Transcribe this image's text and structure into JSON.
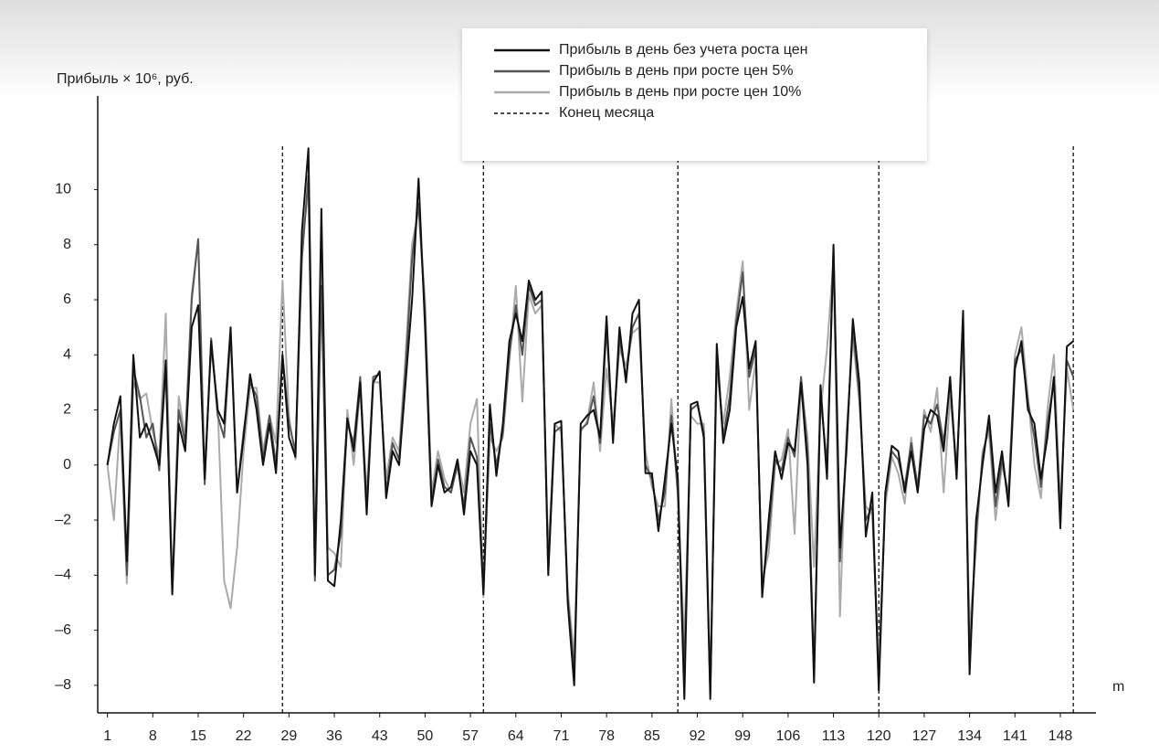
{
  "chart_data": {
    "type": "line",
    "y_label": "Прибыль × 10⁶, руб.",
    "x_label": "m",
    "x": [
      1,
      2,
      3,
      4,
      5,
      6,
      7,
      8,
      9,
      10,
      11,
      12,
      13,
      14,
      15,
      16,
      17,
      18,
      19,
      20,
      21,
      22,
      23,
      24,
      25,
      26,
      27,
      28,
      29,
      30,
      31,
      32,
      33,
      34,
      35,
      36,
      37,
      38,
      39,
      40,
      41,
      42,
      43,
      44,
      45,
      46,
      47,
      48,
      49,
      50,
      51,
      52,
      53,
      54,
      55,
      56,
      57,
      58,
      59,
      60,
      61,
      62,
      63,
      64,
      65,
      66,
      67,
      68,
      69,
      70,
      71,
      72,
      73,
      74,
      75,
      76,
      77,
      78,
      79,
      80,
      81,
      82,
      83,
      84,
      85,
      86,
      87,
      88,
      89,
      90,
      91,
      92,
      93,
      94,
      95,
      96,
      97,
      98,
      99,
      100,
      101,
      102,
      103,
      104,
      105,
      106,
      107,
      108,
      109,
      110,
      111,
      112,
      113,
      114,
      115,
      116,
      117,
      118,
      119,
      120,
      121,
      122,
      123,
      124,
      125,
      126,
      127,
      128,
      129,
      130,
      131,
      132,
      133,
      134,
      135,
      136,
      137,
      138,
      139,
      140,
      141,
      142,
      143,
      144,
      145,
      146,
      147,
      148,
      149,
      150
    ],
    "series": [
      {
        "name": "Прибыль в день без учета роста цен",
        "color": "#111111",
        "values": [
          0,
          1.5,
          2.5,
          -3.5,
          4,
          1,
          1.5,
          0.8,
          0,
          3.8,
          -4.7,
          1.5,
          0.5,
          5,
          5.8,
          -0.5,
          4.5,
          2,
          1.5,
          5,
          -1,
          1,
          3.3,
          2,
          0,
          1.5,
          -0.3,
          4,
          1,
          0.3,
          8.5,
          11.5,
          -4,
          9.3,
          -4.2,
          -4.4,
          -2,
          1.7,
          0.5,
          3,
          -1.8,
          3,
          3.4,
          -1.2,
          0.5,
          0,
          3,
          6,
          10.4,
          5,
          -1.5,
          0,
          -1,
          -0.8,
          0.2,
          -1.8,
          0.5,
          0,
          -4.7,
          2.2,
          -0.4,
          1.5,
          4.5,
          5.5,
          4.5,
          6.7,
          6,
          6.3,
          -4,
          1.5,
          1.6,
          -5,
          -8,
          1.5,
          1.8,
          2,
          1,
          5.4,
          0.8,
          5,
          3,
          5.5,
          6,
          -0.3,
          -0.3,
          -2.4,
          -0.5,
          1.5,
          -0.5,
          -8.5,
          2.2,
          2.3,
          1,
          -8.5,
          4.4,
          0.8,
          2,
          5,
          6.1,
          3.5,
          4.5,
          -4.8,
          -2,
          0.5,
          -0.5,
          0.8,
          0.5,
          3,
          0,
          -7.9,
          2.9,
          -0.5,
          8,
          -3,
          0.5,
          5.3,
          3,
          -2.6,
          -1,
          -8.2,
          -1,
          0.7,
          0.5,
          -1,
          0.5,
          -1,
          1.3,
          2,
          1.8,
          0.5,
          3.2,
          -0.5,
          5.6,
          -7.6,
          -2,
          0,
          1.8,
          -1,
          0.5,
          -1.5,
          3.5,
          4.5,
          2,
          1.5,
          -0.5,
          1,
          3.2,
          -2.3,
          4.3,
          4.5
        ]
      },
      {
        "name": "Прибыль в день при росте цен 5%",
        "color": "#555555",
        "values": [
          0,
          1.2,
          2,
          -4,
          3.5,
          2.5,
          1,
          1.5,
          -0.2,
          3.5,
          -4.6,
          2,
          0.8,
          6,
          8.2,
          -0.7,
          4.6,
          1.8,
          1,
          4.8,
          -1,
          1.2,
          3,
          2.5,
          0.2,
          1.8,
          0,
          4,
          1.5,
          0.5,
          7.5,
          10.5,
          -4.2,
          6.5,
          -4,
          -3.8,
          -2.5,
          1.5,
          0.8,
          3.2,
          -1.5,
          3.2,
          3.3,
          -1,
          0.8,
          0.2,
          3.5,
          7.5,
          9.5,
          5.5,
          -1.3,
          0.2,
          -0.8,
          -1,
          0,
          -1.5,
          1,
          0.3,
          -4.5,
          1.5,
          0,
          1.2,
          4,
          5.8,
          4,
          6.5,
          5.8,
          6,
          -3.8,
          1.2,
          1.4,
          -4.8,
          -7.5,
          1.3,
          1.5,
          2.5,
          0.8,
          5,
          1,
          4.6,
          3.2,
          5,
          5.5,
          0,
          -0.5,
          -2,
          -1,
          1.8,
          -1,
          -7.5,
          2,
          2.2,
          1.2,
          -8.3,
          4,
          1,
          2.5,
          5.2,
          7,
          3.2,
          4.2,
          -4.5,
          -2.5,
          0.2,
          -0.2,
          1,
          0.3,
          3.2,
          0.5,
          -7.5,
          2.5,
          0,
          7.8,
          -3.5,
          0.8,
          5,
          2.5,
          -2,
          -1.5,
          -7.8,
          -1.2,
          0.5,
          0.2,
          -0.8,
          0.8,
          -0.8,
          1.8,
          1.5,
          2.2,
          0.8,
          3,
          -0.3,
          5.2,
          -7,
          -2.5,
          0.3,
          1.5,
          -1.5,
          0.2,
          -1.2,
          3.8,
          4.2,
          2.3,
          1,
          -0.8,
          1.5,
          3,
          -1.8,
          3.8,
          3.2
        ]
      },
      {
        "name": "Прибыль в день при росте цен 10%",
        "color": "#aaaaaa",
        "values": [
          0,
          -2,
          1.8,
          -4.3,
          3,
          2.4,
          2.6,
          1.2,
          0.3,
          5.5,
          -4.5,
          2.5,
          1,
          6.2,
          8.2,
          -0.3,
          4.2,
          2.2,
          -4.2,
          -5.2,
          -3,
          0.5,
          2.8,
          2.8,
          0.5,
          1.8,
          0.8,
          6.7,
          1.8,
          0.2,
          8,
          10,
          -3.5,
          8,
          -3,
          -3.2,
          -3.7,
          2,
          0,
          2.8,
          -1,
          3,
          3,
          -0.5,
          1,
          0.5,
          4,
          8,
          9.3,
          6,
          -1,
          0.5,
          -0.5,
          -1,
          0.2,
          -1,
          1.5,
          2.4,
          -4.8,
          1,
          0.5,
          1,
          3.8,
          6.5,
          2.3,
          6.2,
          5.5,
          5.8,
          -3.2,
          1.5,
          1.2,
          -4.5,
          -7,
          1.2,
          1.6,
          3,
          0.5,
          3.5,
          1.5,
          4.2,
          3.6,
          4.8,
          5,
          0.5,
          -0.8,
          -1.5,
          -1.5,
          2.4,
          -1.2,
          -6.5,
          1.8,
          1.5,
          1.5,
          -8,
          3.5,
          1.5,
          3.2,
          5.5,
          7.4,
          2,
          3.8,
          -4.2,
          -3.2,
          0,
          0.2,
          1.3,
          -2.5,
          3,
          1,
          -3.7,
          2,
          4.2,
          7.5,
          -5.5,
          1.2,
          4.6,
          2.3,
          -1.5,
          -1.8,
          -7.2,
          -1.5,
          0.3,
          -0.3,
          -1.4,
          1,
          -1,
          2,
          1.2,
          2.8,
          -1,
          2.5,
          0,
          4.4,
          -6,
          -3,
          0.5,
          1.2,
          -2,
          0,
          -1,
          4,
          5,
          2.5,
          0,
          -1.2,
          2,
          4,
          -1.5,
          3.5,
          2
        ]
      }
    ],
    "month_end": {
      "name": "Конец месяца",
      "x": [
        28,
        59,
        89,
        120,
        150
      ]
    },
    "xlim": [
      -0.5,
      153.5
    ],
    "ylim": [
      -9,
      13.4
    ],
    "xticks": [
      1,
      8,
      15,
      22,
      29,
      36,
      43,
      50,
      57,
      64,
      71,
      78,
      85,
      92,
      99,
      106,
      113,
      120,
      127,
      134,
      141,
      148
    ],
    "yticks": [
      {
        "value": -8,
        "label": "–8"
      },
      {
        "value": -6,
        "label": "–6"
      },
      {
        "value": -4,
        "label": "–4"
      },
      {
        "value": -2,
        "label": "–2"
      },
      0,
      2,
      4,
      6,
      8,
      10
    ],
    "legend": "top"
  }
}
